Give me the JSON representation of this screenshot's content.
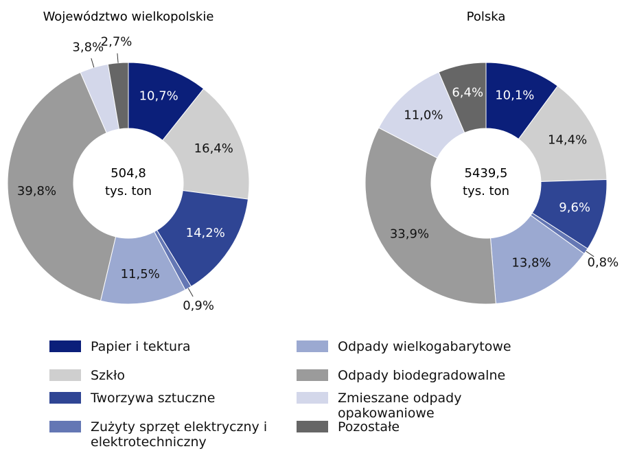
{
  "chart_data": [
    {
      "type": "donut",
      "title": "Województwo wielkopolskie",
      "center_text": "504,8",
      "center_unit": "tys. ton",
      "categories": [
        "Papier i tektura",
        "Szkło",
        "Tworzywa sztuczne",
        "Zużyty sprzęt elektryczny i elektrotechniczny",
        "Odpady wielkogabarytowe",
        "Odpady biodegradowalne",
        "Zmieszane odpady opakowaniowe",
        "Pozostałe"
      ],
      "values": [
        10.7,
        16.4,
        14.2,
        0.9,
        11.5,
        39.8,
        3.8,
        2.7
      ],
      "value_labels": [
        "10,7%",
        "16,4%",
        "14,2%",
        "0,9%",
        "11,5%",
        "39,8%",
        "3,8%",
        "2,7%"
      ],
      "colors": [
        "#0b1f7a",
        "#cfcfcf",
        "#2f4594",
        "#6477b4",
        "#9ba9d1",
        "#9b9b9b",
        "#d3d7ea",
        "#666666"
      ]
    },
    {
      "type": "donut",
      "title": "Polska",
      "center_text": "5439,5",
      "center_unit": "tys. ton",
      "categories": [
        "Papier i tektura",
        "Szkło",
        "Tworzywa sztuczne",
        "Zużyty sprzęt elektryczny i elektrotechniczny",
        "Odpady wielkogabarytowe",
        "Odpady biodegradowalne",
        "Zmieszane odpady opakowaniowe",
        "Pozostałe"
      ],
      "values": [
        10.1,
        14.4,
        9.6,
        0.8,
        13.8,
        33.9,
        11.0,
        6.4
      ],
      "value_labels": [
        "10,1%",
        "14,4%",
        "9,6%",
        "0,8%",
        "13,8%",
        "33,9%",
        "11,0%",
        "6,4%"
      ],
      "colors": [
        "#0b1f7a",
        "#cfcfcf",
        "#2f4594",
        "#6477b4",
        "#9ba9d1",
        "#9b9b9b",
        "#d3d7ea",
        "#666666"
      ]
    }
  ]
}
